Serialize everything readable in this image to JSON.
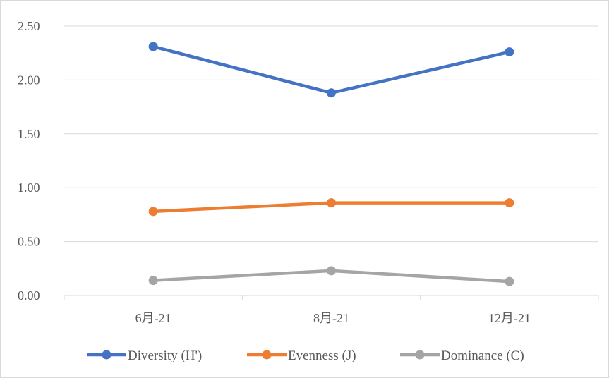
{
  "chart_data": {
    "type": "line",
    "categories": [
      "6月-21",
      "8月-21",
      "12月-21"
    ],
    "series": [
      {
        "name": "Diversity (H')",
        "values": [
          2.31,
          1.88,
          2.26
        ],
        "color": "#4472c4"
      },
      {
        "name": "Evenness (J)",
        "values": [
          0.78,
          0.86,
          0.86
        ],
        "color": "#ed7d31"
      },
      {
        "name": "Dominance (C)",
        "values": [
          0.14,
          0.23,
          0.13
        ],
        "color": "#a5a5a5"
      }
    ],
    "yticks": [
      "0.00",
      "0.50",
      "1.00",
      "1.50",
      "2.00",
      "2.50"
    ],
    "ylim": [
      0,
      2.5
    ],
    "grid": true,
    "legend_position": "bottom",
    "title": "",
    "xlabel": "",
    "ylabel": ""
  }
}
